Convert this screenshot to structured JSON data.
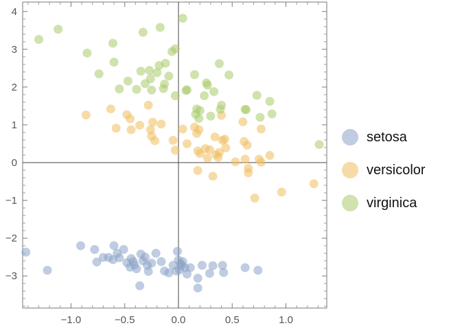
{
  "chart_data": {
    "type": "scatter",
    "title": "",
    "xlabel": "",
    "ylabel": "",
    "xlim": [
      -1.45,
      1.38
    ],
    "ylim": [
      -3.85,
      4.25
    ],
    "x_ticks": [
      -1.0,
      -0.5,
      0.0,
      0.5,
      1.0
    ],
    "x_tick_labels": [
      "−1.0",
      "−0.5",
      "0.0",
      "0.5",
      "1.0"
    ],
    "y_ticks": [
      -3,
      -2,
      -1,
      0,
      1,
      2,
      3,
      4
    ],
    "y_tick_labels": [
      "−3",
      "−2",
      "−1",
      "0",
      "1",
      "2",
      "3",
      "4"
    ],
    "grid": false,
    "axes_through_origin": true,
    "legend_position": "right",
    "series": [
      {
        "name": "setosa",
        "color": "#8aa3c9",
        "points": [
          [
            -1.42,
            -2.37
          ],
          [
            -1.22,
            -2.85
          ],
          [
            -0.91,
            -2.2
          ],
          [
            -0.78,
            -2.3
          ],
          [
            -0.76,
            -2.63
          ],
          [
            -0.7,
            -2.51
          ],
          [
            -0.65,
            -2.51
          ],
          [
            -0.61,
            -2.57
          ],
          [
            -0.6,
            -2.2
          ],
          [
            -0.57,
            -2.4
          ],
          [
            -0.55,
            -2.52
          ],
          [
            -0.51,
            -2.3
          ],
          [
            -0.48,
            -2.65
          ],
          [
            -0.45,
            -2.77
          ],
          [
            -0.44,
            -2.54
          ],
          [
            -0.42,
            -2.62
          ],
          [
            -0.41,
            -2.71
          ],
          [
            -0.39,
            -2.81
          ],
          [
            -0.36,
            -3.26
          ],
          [
            -0.35,
            -2.42
          ],
          [
            -0.33,
            -2.6
          ],
          [
            -0.31,
            -2.5
          ],
          [
            -0.29,
            -2.72
          ],
          [
            -0.28,
            -2.88
          ],
          [
            -0.25,
            -2.66
          ],
          [
            -0.21,
            -2.4
          ],
          [
            -0.16,
            -2.62
          ],
          [
            -0.13,
            -2.87
          ],
          [
            -0.09,
            -2.92
          ],
          [
            -0.05,
            -2.72
          ],
          [
            -0.02,
            -2.87
          ],
          [
            -0.01,
            -2.35
          ],
          [
            0.0,
            -2.58
          ],
          [
            0.01,
            -2.84
          ],
          [
            0.02,
            -2.68
          ],
          [
            0.03,
            -2.72
          ],
          [
            0.04,
            -2.62
          ],
          [
            0.06,
            -2.78
          ],
          [
            0.08,
            -2.95
          ],
          [
            0.11,
            -2.78
          ],
          [
            0.18,
            -3.06
          ],
          [
            0.18,
            -3.32
          ],
          [
            0.22,
            -2.72
          ],
          [
            0.29,
            -2.93
          ],
          [
            0.32,
            -2.73
          ],
          [
            0.41,
            -2.72
          ],
          [
            0.42,
            -2.91
          ],
          [
            0.62,
            -2.78
          ],
          [
            0.74,
            -2.85
          ]
        ]
      },
      {
        "name": "versicolor",
        "color": "#f0bd5e",
        "points": [
          [
            -0.86,
            1.26
          ],
          [
            -0.63,
            1.42
          ],
          [
            -0.58,
            0.91
          ],
          [
            -0.48,
            1.27
          ],
          [
            -0.45,
            1.16
          ],
          [
            -0.44,
            0.87
          ],
          [
            -0.36,
            0.99
          ],
          [
            -0.28,
            1.52
          ],
          [
            -0.26,
            0.87
          ],
          [
            -0.25,
            0.7
          ],
          [
            -0.24,
            1.07
          ],
          [
            -0.22,
            0.58
          ],
          [
            -0.16,
            1.02
          ],
          [
            -0.05,
            0.59
          ],
          [
            -0.03,
            0.33
          ],
          [
            0.04,
            0.89
          ],
          [
            0.08,
            0.5
          ],
          [
            0.15,
            0.94
          ],
          [
            0.17,
            0.77
          ],
          [
            0.18,
            0.31
          ],
          [
            0.18,
            -0.21
          ],
          [
            0.19,
            0.87
          ],
          [
            0.2,
            0.24
          ],
          [
            0.25,
            0.37
          ],
          [
            0.27,
            0.12
          ],
          [
            0.29,
            0.34
          ],
          [
            0.32,
            -0.36
          ],
          [
            0.34,
            0.68
          ],
          [
            0.35,
            0.21
          ],
          [
            0.37,
            0.14
          ],
          [
            0.38,
            0.27
          ],
          [
            0.4,
            1.25
          ],
          [
            0.41,
            0.59
          ],
          [
            0.43,
            0.62
          ],
          [
            0.44,
            0.39
          ],
          [
            0.53,
            0.02
          ],
          [
            0.6,
            1.08
          ],
          [
            0.61,
            0.56
          ],
          [
            0.62,
            0.09
          ],
          [
            0.64,
            0.46
          ],
          [
            0.65,
            -0.15
          ],
          [
            0.65,
            -0.27
          ],
          [
            0.71,
            -0.94
          ],
          [
            0.75,
            0.09
          ],
          [
            0.77,
            0.89
          ],
          [
            0.77,
            0.01
          ],
          [
            0.85,
            0.19
          ],
          [
            0.96,
            -0.78
          ],
          [
            1.26,
            -0.56
          ]
        ]
      },
      {
        "name": "virginica",
        "color": "#a9cb6a",
        "points": [
          [
            -1.3,
            3.26
          ],
          [
            -1.12,
            3.53
          ],
          [
            -0.85,
            2.9
          ],
          [
            -0.74,
            2.35
          ],
          [
            -0.61,
            3.16
          ],
          [
            -0.6,
            2.66
          ],
          [
            -0.55,
            1.95
          ],
          [
            -0.47,
            2.16
          ],
          [
            -0.39,
            1.94
          ],
          [
            -0.35,
            2.42
          ],
          [
            -0.33,
            3.45
          ],
          [
            -0.31,
            2.09
          ],
          [
            -0.27,
            2.44
          ],
          [
            -0.26,
            2.22
          ],
          [
            -0.25,
            1.92
          ],
          [
            -0.2,
            2.38
          ],
          [
            -0.18,
            2.57
          ],
          [
            -0.17,
            3.58
          ],
          [
            -0.14,
            1.96
          ],
          [
            -0.13,
            2.08
          ],
          [
            -0.12,
            2.63
          ],
          [
            -0.09,
            2.29
          ],
          [
            -0.06,
            2.94
          ],
          [
            -0.03,
            3.01
          ],
          [
            -0.03,
            1.77
          ],
          [
            0.04,
            3.82
          ],
          [
            0.07,
            1.91
          ],
          [
            0.08,
            1.93
          ],
          [
            0.15,
            2.33
          ],
          [
            0.16,
            1.28
          ],
          [
            0.17,
            1.42
          ],
          [
            0.19,
            1.17
          ],
          [
            0.2,
            1.38
          ],
          [
            0.24,
            1.77
          ],
          [
            0.26,
            2.11
          ],
          [
            0.27,
            2.05
          ],
          [
            0.3,
            1.23
          ],
          [
            0.33,
            1.88
          ],
          [
            0.38,
            2.62
          ],
          [
            0.39,
            1.41
          ],
          [
            0.4,
            1.52
          ],
          [
            0.47,
            2.32
          ],
          [
            0.62,
            1.41
          ],
          [
            0.63,
            1.4
          ],
          [
            0.73,
            1.78
          ],
          [
            0.76,
            1.2
          ],
          [
            0.85,
            1.62
          ],
          [
            0.87,
            1.29
          ],
          [
            1.31,
            0.48
          ]
        ]
      }
    ]
  }
}
